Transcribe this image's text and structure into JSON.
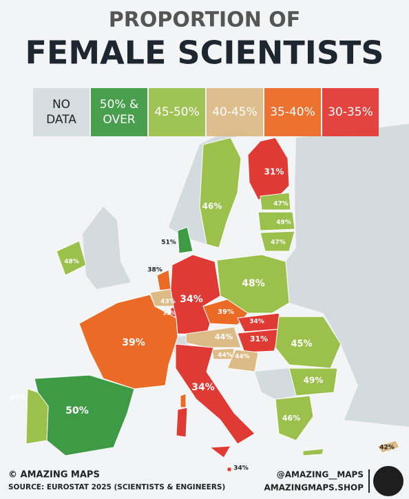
{
  "header": {
    "title_line1": "PROPORTION OF",
    "title_line2": "FEMALE SCIENTISTS"
  },
  "legend": [
    {
      "lines": [
        "NO",
        "DATA"
      ],
      "color": "#d4dbde",
      "text_color": "#222222"
    },
    {
      "lines": [
        "50% &",
        "OVER"
      ],
      "color": "#3f9a45",
      "text_color": "#ffffff"
    },
    {
      "lines": [
        "45-50%"
      ],
      "color": "#9bc04c",
      "text_color": "#ffffff"
    },
    {
      "lines": [
        "40-45%"
      ],
      "color": "#dcbb86",
      "text_color": "#ffffff"
    },
    {
      "lines": [
        "35-40%"
      ],
      "color": "#ea6a26",
      "text_color": "#ffffff"
    },
    {
      "lines": [
        "30-35%"
      ],
      "color": "#e03a35",
      "text_color": "#ffffff"
    }
  ],
  "regions": [
    {
      "label": "31%",
      "color": "#e03a35"
    },
    {
      "label": "46%",
      "color": "#9bc04c"
    },
    {
      "label": "47%",
      "color": "#9bc04c"
    },
    {
      "label": "49%",
      "color": "#9bc04c"
    },
    {
      "label": "47%",
      "color": "#9bc04c"
    },
    {
      "label": "51%",
      "color": "#3f9a45"
    },
    {
      "label": "48%",
      "color": "#9bc04c"
    },
    {
      "label": "38%",
      "color": "#ea6a26"
    },
    {
      "label": "43%",
      "color": "#dcbb86"
    },
    {
      "label": "35%",
      "color": "#e03a35"
    },
    {
      "label": "34%",
      "color": "#e03a35"
    },
    {
      "label": "48%",
      "color": "#9bc04c"
    },
    {
      "label": "39%",
      "color": "#ea6a26"
    },
    {
      "label": "34%",
      "color": "#e03a35"
    },
    {
      "label": "31%",
      "color": "#e03a35"
    },
    {
      "label": "44%",
      "color": "#dcbb86"
    },
    {
      "label": "44%",
      "color": "#dcbb86"
    },
    {
      "label": "44%",
      "color": "#dcbb86"
    },
    {
      "label": "39%",
      "color": "#ea6a26"
    },
    {
      "label": "45%",
      "color": "#9bc04c"
    },
    {
      "label": "49%",
      "color": "#9bc04c"
    },
    {
      "label": "46%",
      "color": "#9bc04c"
    },
    {
      "label": "34%",
      "color": "#e03a35"
    },
    {
      "label": "34%",
      "color": "#e03a35"
    },
    {
      "label": "50%",
      "color": "#3f9a45"
    },
    {
      "label": "46%",
      "color": "#9bc04c"
    },
    {
      "label": "42%",
      "color": "#dcbb86"
    }
  ],
  "footer": {
    "credit": "© AMAZING MAPS",
    "source": "SOURCE: EUROSTAT 2025 (SCIENTISTS & ENGINEERS)",
    "handle": "@AMAZING__MAPS",
    "shop": "AMAZINGMAPS.SHOP"
  }
}
